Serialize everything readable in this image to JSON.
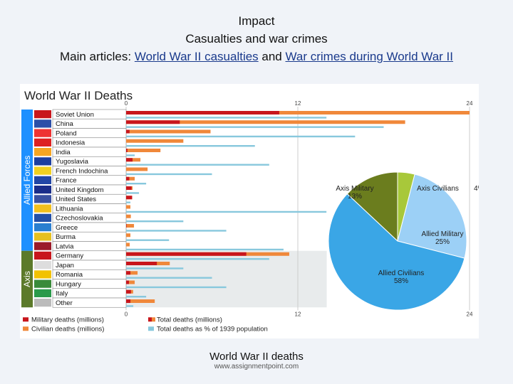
{
  "header": {
    "line1": "Impact",
    "line2": "Casualties and war crimes",
    "line3_prefix": "Main articles: ",
    "link1": "World War II casualties",
    "line3_mid": " and ",
    "link2": "War crimes during World War II"
  },
  "caption": "World War II deaths",
  "source": "www.assignmentpoint.com",
  "colors": {
    "military": "#c8161c",
    "civilian": "#f0883a",
    "percent": "#88c8dd",
    "axis_shade": "#e8ebec",
    "allied_band": "#1e90ff",
    "axis_band": "#5c7a2a"
  },
  "chart_data": [
    {
      "type": "bar",
      "title": "World War II Deaths",
      "group_labels": {
        "allied": "Allied Forces",
        "axis": "Axis"
      },
      "xlim": [
        0,
        24
      ],
      "ticks": [
        0,
        12,
        24
      ],
      "categories": [
        "Soviet Union",
        "China",
        "Poland",
        "Indonesia",
        "India",
        "Yugoslavia",
        "French Indochina",
        "France",
        "United Kingdom",
        "United States",
        "Lithuania",
        "Czechoslovakia",
        "Greece",
        "Burma",
        "Latvia",
        "Germany",
        "Japan",
        "Romania",
        "Hungary",
        "Italy",
        "Other"
      ],
      "groups": [
        "allied",
        "allied",
        "allied",
        "allied",
        "allied",
        "allied",
        "allied",
        "allied",
        "allied",
        "allied",
        "allied",
        "allied",
        "allied",
        "allied",
        "allied",
        "axis",
        "axis",
        "axis",
        "axis",
        "axis",
        "axis"
      ],
      "series": [
        {
          "name": "Military deaths (millions)",
          "values": [
            10.7,
            3.75,
            0.24,
            0,
            0.09,
            0.45,
            0,
            0.22,
            0.38,
            0.42,
            0,
            0,
            0.03,
            0,
            0,
            8.4,
            2.15,
            0.3,
            0.2,
            0.34,
            0.3
          ]
        },
        {
          "name": "Total deaths (millions)",
          "values": [
            24,
            19.5,
            5.9,
            4,
            2.4,
            1.0,
            1.5,
            0.6,
            0.45,
            0.42,
            0.3,
            0.33,
            0.55,
            0.3,
            0.25,
            11.4,
            3.05,
            0.8,
            0.6,
            0.49,
            2.0
          ]
        },
        {
          "name": "Civilian deaths (millions)",
          "values": [
            13.3,
            15.75,
            5.66,
            4,
            2.31,
            0.55,
            1.5,
            0.38,
            0.07,
            0,
            0.3,
            0.33,
            0.52,
            0.3,
            0.25,
            3.0,
            0.9,
            0.5,
            0.4,
            0.15,
            1.7
          ]
        },
        {
          "name": "Total deaths as % of 1939 population",
          "values": [
            14,
            18,
            16,
            9,
            0.6,
            10,
            6,
            1.4,
            0.9,
            0.3,
            14,
            4,
            7,
            3,
            11,
            10,
            4,
            6,
            7,
            1.4,
            0.5
          ]
        }
      ],
      "legend": [
        "Military deaths (millions)",
        "Total deaths (millions)",
        "Civilian deaths (millions)",
        "Total deaths as % of 1939 population"
      ]
    },
    {
      "type": "pie",
      "labels": [
        "Axis Military",
        "Axis Civilians",
        "Allied Military",
        "Allied Civilians"
      ],
      "values": [
        13,
        4,
        25,
        58
      ],
      "value_labels": [
        "13%",
        "4%",
        "25%",
        "58%"
      ],
      "colors": [
        "#6b7d1e",
        "#a8c83a",
        "#9cd0f6",
        "#3aa6e6"
      ]
    }
  ]
}
